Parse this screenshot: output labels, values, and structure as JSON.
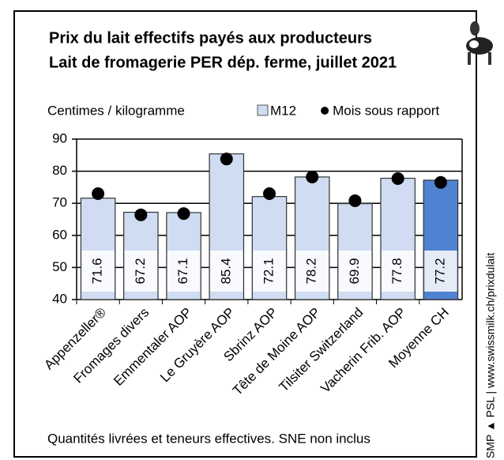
{
  "chart_data": {
    "type": "bar",
    "title": [
      "Prix du lait effectifs payés aux producteurs",
      "Lait de fromagerie PER dép. ferme, juillet 2021"
    ],
    "y_label": "Centimes / kilogramme",
    "categories": [
      "Appenzeller®",
      "Fromages divers",
      "Emmentaler AOP",
      "Le Gruyère AOP",
      "Sbrinz AOP",
      "Tête de Moine AOP",
      "Tilsiter Switzerland",
      "Vacherin Frib. AOP",
      "Moyenne CH"
    ],
    "series": [
      {
        "name": "M12",
        "type": "bar",
        "color": "#cfdcf2",
        "point_colors": [
          "#cfdcf2",
          "#cfdcf2",
          "#cfdcf2",
          "#cfdcf2",
          "#cfdcf2",
          "#cfdcf2",
          "#cfdcf2",
          "#cfdcf2",
          "#4f83d1"
        ],
        "values": [
          71.6,
          67.2,
          67.1,
          85.4,
          72.1,
          78.2,
          69.9,
          77.8,
          77.2
        ]
      },
      {
        "name": "Mois sous rapport",
        "type": "dot",
        "color": "#000000",
        "values": [
          73.0,
          66.4,
          66.8,
          83.8,
          73.0,
          78.2,
          70.8,
          77.7,
          76.5
        ]
      }
    ],
    "ylim": [
      40,
      90
    ],
    "yticks": [
      40,
      50,
      60,
      70,
      80,
      90
    ],
    "grid": true,
    "footnote": "Quantités livrées et teneurs effectives. SNE non inclus",
    "source": "© SMP ▲ PSL | www.swissmilk.ch/prixdulait"
  }
}
